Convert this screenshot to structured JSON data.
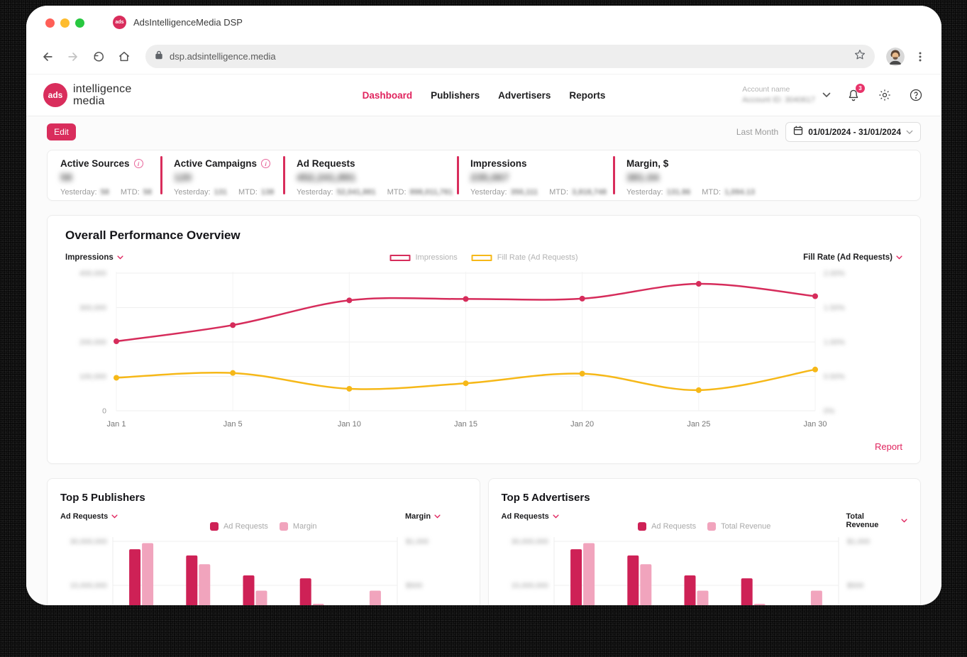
{
  "colors": {
    "accent": "#D92D5C",
    "line_pink": "#D62C5B",
    "line_yellow": "#F6B818",
    "bar_dark": "#CE2156",
    "bar_light": "#F1A4BD"
  },
  "browser": {
    "tab_title": "AdsIntelligenceMedia DSP",
    "favicon_text": "ads",
    "url": "dsp.adsintelligence.media"
  },
  "header": {
    "logo": {
      "circle_text": "ads",
      "line1": "intelligence",
      "line2": "media"
    },
    "nav": [
      {
        "label": "Dashboard",
        "active": true
      },
      {
        "label": "Publishers",
        "active": false
      },
      {
        "label": "Advertisers",
        "active": false
      },
      {
        "label": "Reports",
        "active": false
      }
    ],
    "account": {
      "label": "Account name",
      "id_text": "Account ID: 3040617",
      "id_blurred": true,
      "notification_badge": "3"
    }
  },
  "controls": {
    "edit_label": "Edit",
    "range_label": "Last Month",
    "date_range": "01/01/2024 - 31/01/2024"
  },
  "stats": {
    "yesterday_label": "Yesterday:",
    "mtd_label": "MTD:",
    "values_blurred": true,
    "items": [
      {
        "title": "Active Sources",
        "info": true,
        "value": "58",
        "yesterday": "58",
        "mtd": "58"
      },
      {
        "title": "Active Campaigns",
        "info": true,
        "value": "120",
        "yesterday": "131",
        "mtd": "138"
      },
      {
        "title": "Ad Requests",
        "info": false,
        "value": "452,241,891",
        "yesterday": "52,041,881",
        "mtd": "898,011,781"
      },
      {
        "title": "Impressions",
        "info": false,
        "value": "235,067",
        "yesterday": "350,111",
        "mtd": "3,818,748"
      },
      {
        "title": "Margin, $",
        "info": false,
        "value": "381.04",
        "yesterday": "131.86",
        "mtd": "1,094.13"
      }
    ]
  },
  "overview_card": {
    "title": "Overall Performance Overview",
    "left_selector": "Impressions",
    "right_selector": "Fill Rate (Ad Requests)",
    "report_label": "Report"
  },
  "publishers_card": {
    "title": "Top 5 Publishers",
    "left_selector": "Ad Requests",
    "right_selector": "Margin"
  },
  "advertisers_card": {
    "title": "Top 5 Advertisers",
    "left_selector": "Ad Requests",
    "right_selector": "Total Revenue"
  },
  "chart_data": [
    {
      "id": "overview",
      "type": "line",
      "title": "Overall Performance Overview",
      "x": [
        "Jan 1",
        "Jan 5",
        "Jan 10",
        "Jan 15",
        "Jan 20",
        "Jan 25",
        "Jan 30"
      ],
      "series": [
        {
          "name": "Impressions",
          "axis": "left",
          "color": "#D62C5B",
          "values": [
            202000,
            249000,
            321000,
            325000,
            326000,
            369000,
            333000
          ]
        },
        {
          "name": "Fill Rate (Ad Requests)",
          "axis": "right",
          "color": "#F6B818",
          "values": [
            0.48,
            0.55,
            0.32,
            0.4,
            0.54,
            0.3,
            0.6
          ]
        }
      ],
      "left_axis": {
        "max": 400000,
        "ticks": [
          "400,000",
          "300,000",
          "200,000",
          "100,000",
          "0"
        ],
        "blurred": [
          true,
          true,
          true,
          true,
          false
        ]
      },
      "right_axis": {
        "max": 2,
        "unit": "%",
        "ticks": [
          "2.00%",
          "1.50%",
          "1.00%",
          "0.50%",
          "0%"
        ],
        "blurred": [
          true,
          true,
          true,
          true,
          true
        ]
      },
      "grid": true,
      "legend_position": "top-center"
    },
    {
      "id": "publishers",
      "type": "bar",
      "title": "Top 5 Publishers",
      "categories": [
        "",
        "",
        "",
        "",
        ""
      ],
      "series": [
        {
          "name": "Ad Requests",
          "axis": "left",
          "color": "#CE2156",
          "values": [
            27300000,
            25200000,
            18400000,
            17400000,
            1000000
          ]
        },
        {
          "name": "Margin",
          "axis": "right",
          "color": "#F1A4BD",
          "values": [
            980,
            740,
            440,
            290,
            440
          ]
        }
      ],
      "left_axis": {
        "max": 30000000,
        "ticks": [
          "30,000,000",
          "15,000,000"
        ],
        "blurred": [
          true,
          true
        ]
      },
      "right_axis": {
        "max": 1000,
        "ticks": [
          "$1,000",
          "$500"
        ],
        "blurred": [
          true,
          true
        ]
      },
      "grid": true,
      "legend_position": "top-center"
    },
    {
      "id": "advertisers",
      "type": "bar",
      "title": "Top 5 Advertisers",
      "categories": [
        "",
        "",
        "",
        "",
        ""
      ],
      "series": [
        {
          "name": "Ad Requests",
          "axis": "left",
          "color": "#CE2156",
          "values": [
            27300000,
            25200000,
            18400000,
            17400000,
            1000000
          ]
        },
        {
          "name": "Total Revenue",
          "axis": "right",
          "color": "#F1A4BD",
          "values": [
            980,
            740,
            440,
            290,
            440
          ]
        }
      ],
      "left_axis": {
        "max": 30000000,
        "ticks": [
          "30,000,000",
          "15,000,000"
        ],
        "blurred": [
          true,
          true
        ]
      },
      "right_axis": {
        "max": 1000,
        "ticks": [
          "$1,000",
          "$500"
        ],
        "blurred": [
          true,
          true
        ]
      },
      "grid": true,
      "legend_position": "top-center"
    }
  ]
}
